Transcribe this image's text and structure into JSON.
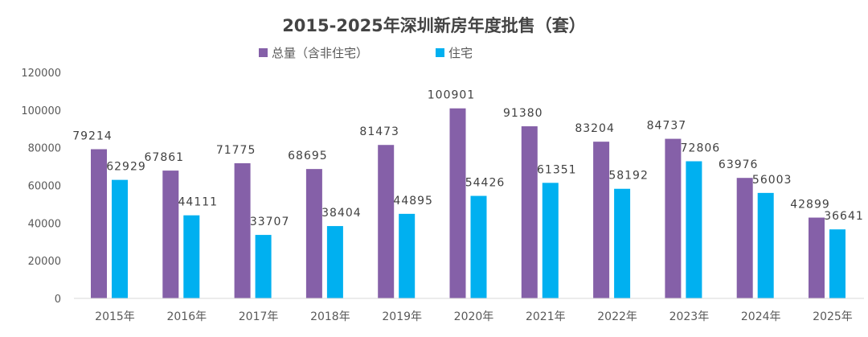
{
  "chart_data": {
    "type": "bar",
    "title": "2015-2025年深圳新房年度批售（套）",
    "categories": [
      "2015年",
      "2016年",
      "2017年",
      "2018年",
      "2019年",
      "2020年",
      "2021年",
      "2022年",
      "2023年",
      "2024年",
      "2025年"
    ],
    "series": [
      {
        "name": "总量（含非住宅）",
        "color": "#8560A8",
        "values": [
          79214,
          67861,
          71775,
          68695,
          81473,
          100901,
          91380,
          83204,
          84737,
          63976,
          42899
        ]
      },
      {
        "name": "住宅",
        "color": "#00B0F0",
        "values": [
          62929,
          44111,
          33707,
          38404,
          44895,
          54426,
          61351,
          58192,
          72806,
          56003,
          36641
        ]
      }
    ],
    "yticks": [
      "0",
      "20000",
      "40000",
      "60000",
      "80000",
      "100000",
      "120000"
    ],
    "ylim": [
      0,
      120000
    ],
    "grid": false,
    "legend": "top"
  }
}
